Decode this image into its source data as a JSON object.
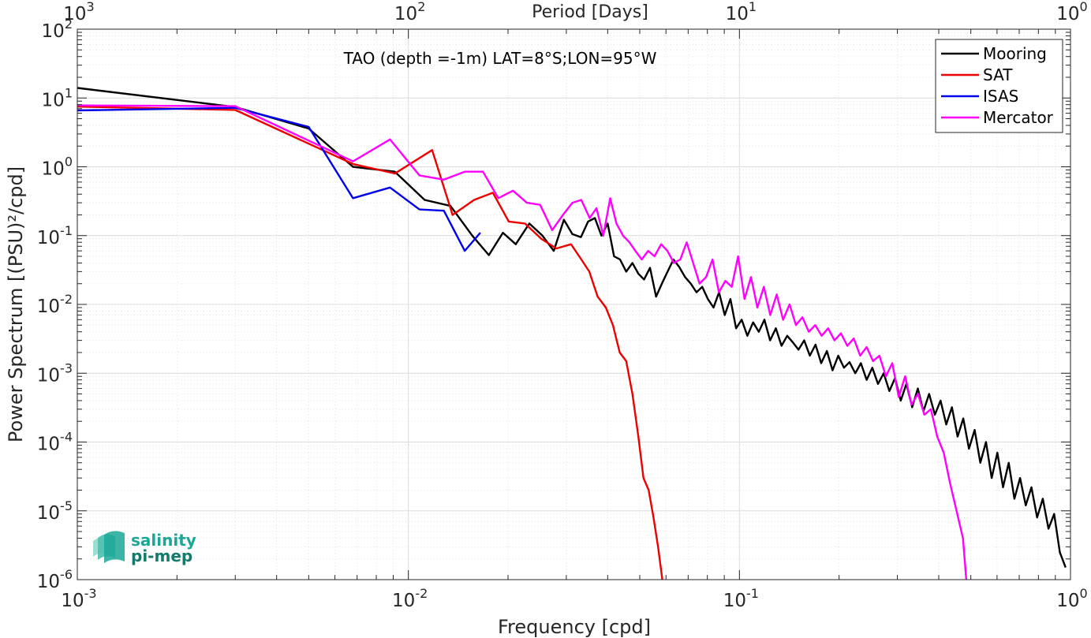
{
  "chart_data": {
    "type": "line",
    "title": "TAO (depth =-1m) LAT=8°S;LON=95°W",
    "xlabel": "Frequency [cpd]",
    "ylabel": "Power Spectrum [(PSU)²/cpd]",
    "top_xlabel": "Period [Days]",
    "x_scale": "log",
    "y_scale": "log",
    "xlim": [
      0.001,
      1
    ],
    "ylim": [
      1e-06,
      100
    ],
    "grid": true,
    "legend_position": "top-right",
    "x_ticks": [
      {
        "base": "10",
        "exp": "-3",
        "value": 0.001
      },
      {
        "base": "10",
        "exp": "-2",
        "value": 0.01
      },
      {
        "base": "10",
        "exp": "-1",
        "value": 0.1
      },
      {
        "base": "10",
        "exp": "0",
        "value": 1
      }
    ],
    "top_ticks": [
      {
        "base": "10",
        "exp": "3",
        "value": 0.001
      },
      {
        "base": "10",
        "exp": "2",
        "value": 0.01
      },
      {
        "base": "10",
        "exp": "1",
        "value": 0.1
      },
      {
        "base": "10",
        "exp": "0",
        "value": 1
      }
    ],
    "y_ticks": [
      {
        "base": "10",
        "exp": "2",
        "value": 100
      },
      {
        "base": "10",
        "exp": "1",
        "value": 10
      },
      {
        "base": "10",
        "exp": "0",
        "value": 1
      },
      {
        "base": "10",
        "exp": "-1",
        "value": 0.1
      },
      {
        "base": "10",
        "exp": "-2",
        "value": 0.01
      },
      {
        "base": "10",
        "exp": "-3",
        "value": 0.001
      },
      {
        "base": "10",
        "exp": "-4",
        "value": 0.0001
      },
      {
        "base": "10",
        "exp": "-5",
        "value": 1e-05
      },
      {
        "base": "10",
        "exp": "-6",
        "value": 1e-06
      }
    ],
    "series": [
      {
        "name": "Mooring",
        "color": "#000000",
        "x": [
          0.001,
          0.003,
          0.005,
          0.0068,
          0.0091,
          0.0112,
          0.0134,
          0.0156,
          0.0175,
          0.0193,
          0.0211,
          0.0232,
          0.0254,
          0.0275,
          0.0295,
          0.0313,
          0.0332,
          0.0349,
          0.0366,
          0.0383,
          0.04,
          0.0418,
          0.0436,
          0.0455,
          0.0475,
          0.0495,
          0.0515,
          0.0537,
          0.056,
          0.0583,
          0.0607,
          0.0632,
          0.0658,
          0.0685,
          0.0713,
          0.0742,
          0.0772,
          0.0803,
          0.0835,
          0.0868,
          0.0903,
          0.0939,
          0.0977,
          0.1016,
          0.1057,
          0.11,
          0.1144,
          0.119,
          0.1238,
          0.1288,
          0.134,
          0.1394,
          0.145,
          0.1508,
          0.1569,
          0.1632,
          0.1698,
          0.1766,
          0.1837,
          0.1911,
          0.1988,
          0.2068,
          0.2151,
          0.2238,
          0.2328,
          0.2422,
          0.252,
          0.2622,
          0.2728,
          0.2838,
          0.2952,
          0.3071,
          0.3195,
          0.3324,
          0.3458,
          0.3597,
          0.3742,
          0.3893,
          0.405,
          0.4213,
          0.4383,
          0.456,
          0.4744,
          0.4935,
          0.5134,
          0.5341,
          0.5556,
          0.578,
          0.6013,
          0.6255,
          0.6507,
          0.677,
          0.7043,
          0.7327,
          0.7622,
          0.793,
          0.825,
          0.8582,
          0.8928,
          0.9288,
          0.9663
        ],
        "values": [
          14,
          7.4,
          3.6,
          1.0,
          0.85,
          0.33,
          0.27,
          0.1,
          0.052,
          0.11,
          0.075,
          0.15,
          0.1,
          0.06,
          0.17,
          0.105,
          0.095,
          0.16,
          0.18,
          0.1,
          0.15,
          0.05,
          0.045,
          0.03,
          0.04,
          0.028,
          0.023,
          0.034,
          0.013,
          0.02,
          0.03,
          0.045,
          0.035,
          0.025,
          0.02,
          0.015,
          0.018,
          0.012,
          0.009,
          0.015,
          0.007,
          0.012,
          0.0045,
          0.006,
          0.0035,
          0.0055,
          0.004,
          0.006,
          0.003,
          0.0045,
          0.0025,
          0.0035,
          0.0028,
          0.0022,
          0.003,
          0.0018,
          0.0026,
          0.0014,
          0.0021,
          0.0011,
          0.0018,
          0.0012,
          0.00145,
          0.001,
          0.0014,
          0.0008,
          0.0012,
          0.0007,
          0.001,
          0.00055,
          0.00085,
          0.0004,
          0.0007,
          0.00032,
          0.0006,
          0.00028,
          0.0005,
          0.00025,
          0.0004,
          0.00018,
          0.00032,
          0.00012,
          0.00022,
          8e-05,
          0.00015,
          5e-05,
          0.0001,
          3e-05,
          7e-05,
          2.2e-05,
          5e-05,
          1.5e-05,
          3e-05,
          1.2e-05,
          2.2e-05,
          8e-06,
          1.5e-05,
          5.5e-06,
          9e-06,
          2.5e-06,
          1.5e-06
        ]
      },
      {
        "name": "SAT",
        "color": "#ee0000",
        "x": [
          0.001,
          0.003,
          0.0068,
          0.0091,
          0.0118,
          0.0136,
          0.0158,
          0.018,
          0.0201,
          0.0225,
          0.0252,
          0.028,
          0.031,
          0.0333,
          0.0352,
          0.0373,
          0.0395,
          0.0415,
          0.0435,
          0.0455,
          0.0475,
          0.0495,
          0.0513,
          0.0532,
          0.055,
          0.0568,
          0.0585
        ],
        "values": [
          7.5,
          6.7,
          1.1,
          0.8,
          1.75,
          0.2,
          0.33,
          0.42,
          0.16,
          0.15,
          0.09,
          0.065,
          0.075,
          0.045,
          0.03,
          0.013,
          0.009,
          0.005,
          0.002,
          0.0015,
          0.0005,
          0.00012,
          3e-05,
          2e-05,
          8e-06,
          3e-06,
          1e-06
        ]
      },
      {
        "name": "ISAS",
        "color": "#0000ee",
        "x": [
          0.001,
          0.003,
          0.005,
          0.0068,
          0.0088,
          0.0108,
          0.0128,
          0.0148,
          0.0165
        ],
        "values": [
          6.6,
          7.2,
          3.8,
          0.35,
          0.5,
          0.24,
          0.23,
          0.06,
          0.11
        ]
      },
      {
        "name": "Mercator",
        "color": "#ff00ff",
        "x": [
          0.001,
          0.003,
          0.0068,
          0.0088,
          0.0108,
          0.0128,
          0.0148,
          0.0168,
          0.0187,
          0.0207,
          0.0228,
          0.025,
          0.0272,
          0.0293,
          0.0313,
          0.0333,
          0.0353,
          0.037,
          0.0388,
          0.0407,
          0.0425,
          0.0445,
          0.0465,
          0.0485,
          0.0507,
          0.053,
          0.0554,
          0.058,
          0.0606,
          0.0634,
          0.0663,
          0.0693,
          0.0725,
          0.0758,
          0.0793,
          0.0829,
          0.0867,
          0.0907,
          0.0948,
          0.0991,
          0.1036,
          0.1084,
          0.1133,
          0.1185,
          0.1239,
          0.1296,
          0.1355,
          0.1417,
          0.1482,
          0.155,
          0.162,
          0.1694,
          0.1772,
          0.1853,
          0.1937,
          0.2026,
          0.2118,
          0.2215,
          0.2316,
          0.2422,
          0.2533,
          0.2648,
          0.2769,
          0.2896,
          0.3028,
          0.3166,
          0.3311,
          0.3462,
          0.362,
          0.3786,
          0.3959,
          0.414,
          0.4329,
          0.4527,
          0.4734,
          0.4845
        ],
        "values": [
          7.8,
          7.6,
          1.2,
          2.5,
          0.75,
          0.65,
          0.85,
          0.85,
          0.35,
          0.45,
          0.3,
          0.28,
          0.12,
          0.2,
          0.3,
          0.33,
          0.18,
          0.25,
          0.1,
          0.35,
          0.15,
          0.1,
          0.08,
          0.06,
          0.045,
          0.06,
          0.05,
          0.075,
          0.06,
          0.04,
          0.045,
          0.08,
          0.04,
          0.02,
          0.025,
          0.045,
          0.015,
          0.022,
          0.018,
          0.05,
          0.012,
          0.025,
          0.009,
          0.018,
          0.007,
          0.014,
          0.006,
          0.01,
          0.005,
          0.0065,
          0.004,
          0.005,
          0.0035,
          0.0045,
          0.003,
          0.0038,
          0.0025,
          0.0032,
          0.0018,
          0.0024,
          0.0015,
          0.0018,
          0.0009,
          0.0014,
          0.00045,
          0.0009,
          0.00035,
          0.0005,
          0.00025,
          0.0003,
          0.00012,
          7e-05,
          2.5e-05,
          1e-05,
          4e-06,
          1e-06
        ]
      }
    ]
  },
  "logo": {
    "line1": "salinity",
    "line2": "pi-mep",
    "color": "#1aa896"
  }
}
